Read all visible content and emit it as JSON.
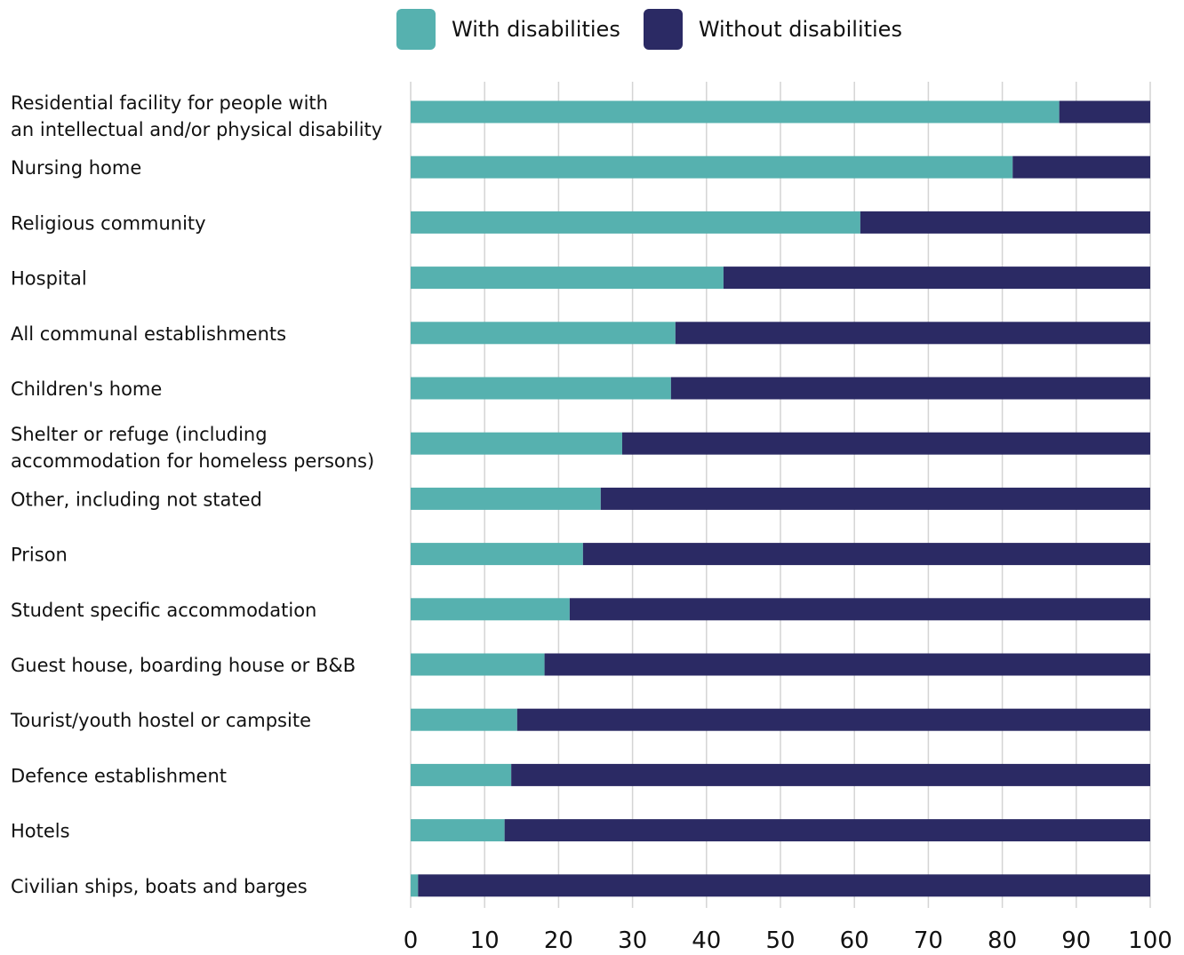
{
  "chart_data": {
    "type": "bar",
    "orientation": "horizontal",
    "stacked": true,
    "title": "",
    "xlabel": "",
    "ylabel": "",
    "xlim": [
      0,
      100
    ],
    "xticks": [
      0,
      10,
      20,
      30,
      40,
      50,
      60,
      70,
      80,
      90,
      100
    ],
    "grid": "vertical",
    "legend_position": "top",
    "colors": {
      "with": "#56B1AF",
      "without": "#2B2A64"
    },
    "categories": [
      "Residential facility for people with an intellectual and/or physical disability",
      "Nursing home",
      "Religious community",
      "Hospital",
      "All communal establishments",
      "Children's home",
      "Shelter or refuge (including accommodation for homeless persons)",
      "Other, including not stated",
      "Prison",
      "Student specific accommodation",
      "Guest house, boarding house or B&B",
      "Tourist/youth hostel or campsite",
      "Defence establishment",
      "Hotels",
      "Civilian ships, boats and barges"
    ],
    "category_lines": [
      [
        "Residential facility for people with",
        "an intellectual and/or physical disability"
      ],
      [
        "Nursing home"
      ],
      [
        "Religious community"
      ],
      [
        "Hospital"
      ],
      [
        "All communal establishments"
      ],
      [
        "Children's home"
      ],
      [
        "Shelter or refuge (including",
        "accommodation for homeless persons)"
      ],
      [
        "Other, including not stated"
      ],
      [
        "Prison"
      ],
      [
        "Student specific accommodation"
      ],
      [
        "Guest house, boarding house or B&B"
      ],
      [
        "Tourist/youth hostel or campsite"
      ],
      [
        "Defence establishment"
      ],
      [
        "Hotels"
      ],
      [
        "Civilian ships, boats and barges"
      ]
    ],
    "series": [
      {
        "name": "With disabilities",
        "values": [
          87.7,
          81.4,
          60.8,
          42.3,
          35.8,
          35.2,
          28.6,
          25.7,
          23.3,
          21.5,
          18.1,
          14.4,
          13.6,
          12.7,
          1.0
        ]
      },
      {
        "name": "Without disabilities",
        "values": [
          12.3,
          18.6,
          39.2,
          57.7,
          64.2,
          64.8,
          71.4,
          74.3,
          76.7,
          78.5,
          81.9,
          85.6,
          86.4,
          87.3,
          99.0
        ]
      }
    ]
  }
}
